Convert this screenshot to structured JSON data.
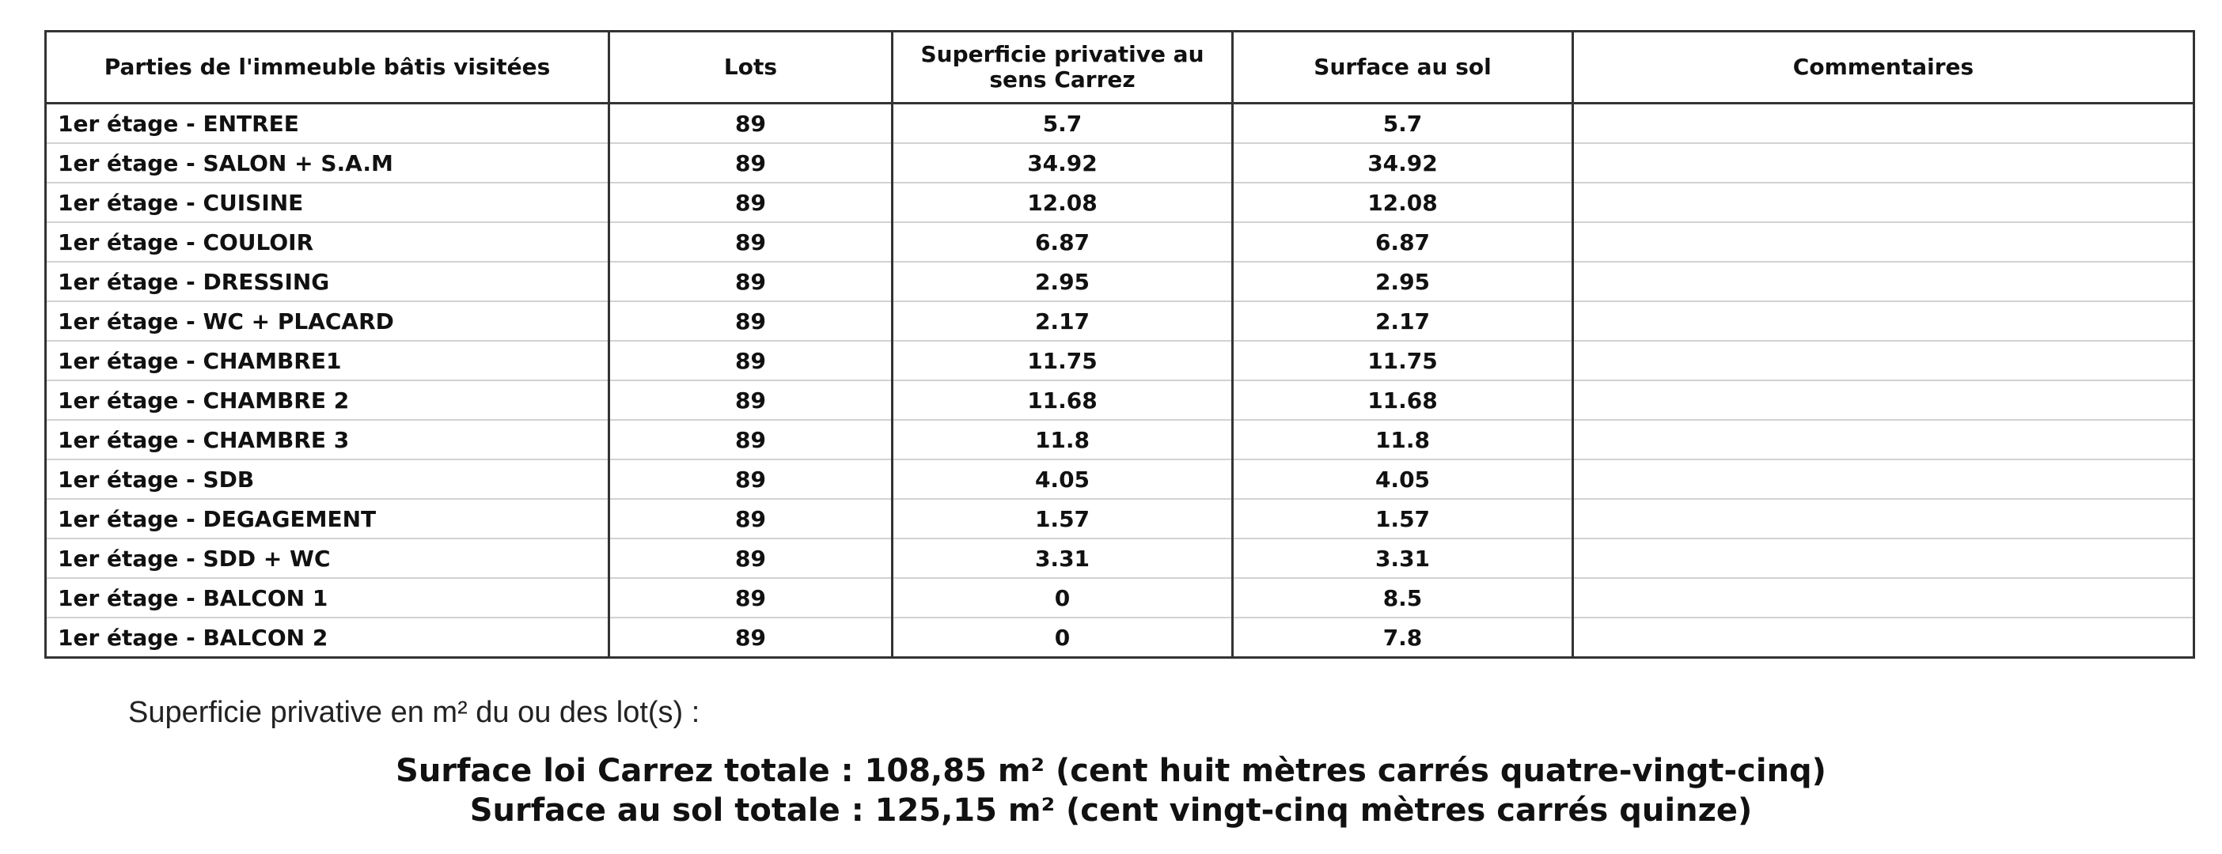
{
  "table": {
    "headers": {
      "part": "Parties de l'immeuble bâtis visitées",
      "lot": "Lots",
      "carrez": "Superficie privative au sens Carrez",
      "floor": "Surface au sol",
      "comment": "Commentaires"
    },
    "rows": [
      {
        "part": "1er étage - ENTREE",
        "lot": "89",
        "carrez": "5.7",
        "floor": "5.7",
        "comment": ""
      },
      {
        "part": "1er étage - SALON + S.A.M",
        "lot": "89",
        "carrez": "34.92",
        "floor": "34.92",
        "comment": ""
      },
      {
        "part": "1er étage - CUISINE",
        "lot": "89",
        "carrez": "12.08",
        "floor": "12.08",
        "comment": ""
      },
      {
        "part": "1er étage - COULOIR",
        "lot": "89",
        "carrez": "6.87",
        "floor": "6.87",
        "comment": ""
      },
      {
        "part": "1er étage - DRESSING",
        "lot": "89",
        "carrez": "2.95",
        "floor": "2.95",
        "comment": ""
      },
      {
        "part": "1er étage - WC + PLACARD",
        "lot": "89",
        "carrez": "2.17",
        "floor": "2.17",
        "comment": ""
      },
      {
        "part": "1er étage - CHAMBRE1",
        "lot": "89",
        "carrez": "11.75",
        "floor": "11.75",
        "comment": ""
      },
      {
        "part": "1er étage - CHAMBRE 2",
        "lot": "89",
        "carrez": "11.68",
        "floor": "11.68",
        "comment": ""
      },
      {
        "part": "1er étage - CHAMBRE 3",
        "lot": "89",
        "carrez": "11.8",
        "floor": "11.8",
        "comment": ""
      },
      {
        "part": "1er étage - SDB",
        "lot": "89",
        "carrez": "4.05",
        "floor": "4.05",
        "comment": ""
      },
      {
        "part": "1er étage - DEGAGEMENT",
        "lot": "89",
        "carrez": "1.57",
        "floor": "1.57",
        "comment": ""
      },
      {
        "part": "1er étage - SDD + WC",
        "lot": "89",
        "carrez": "3.31",
        "floor": "3.31",
        "comment": ""
      },
      {
        "part": "1er étage - BALCON 1",
        "lot": "89",
        "carrez": "0",
        "floor": "8.5",
        "comment": ""
      },
      {
        "part": "1er étage - BALCON 2",
        "lot": "89",
        "carrez": "0",
        "floor": "7.8",
        "comment": ""
      }
    ]
  },
  "summary": {
    "intro": "Superficie privative en m² du ou des lot(s) :",
    "carrez_total": "Surface loi Carrez totale : 108,85 m² (cent huit mètres carrés quatre-vingt-cinq)",
    "floor_total": "Surface au sol totale : 125,15 m² (cent vingt-cinq mètres carrés quinze)"
  }
}
